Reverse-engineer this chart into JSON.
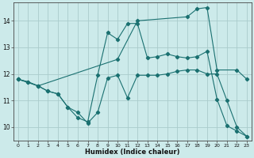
{
  "xlabel": "Humidex (Indice chaleur)",
  "bg_color": "#cceaea",
  "grid_color": "#aacccc",
  "line_color": "#1a7070",
  "xlim": [
    -0.5,
    23.5
  ],
  "ylim": [
    9.5,
    14.7
  ],
  "yticks": [
    10,
    11,
    12,
    13,
    14
  ],
  "xticks": [
    0,
    1,
    2,
    3,
    4,
    5,
    6,
    7,
    8,
    9,
    10,
    11,
    12,
    13,
    14,
    15,
    16,
    17,
    18,
    19,
    20,
    21,
    22,
    23
  ],
  "line1_x": [
    0,
    1,
    2,
    3,
    4,
    5,
    6,
    7,
    8,
    9,
    10,
    11,
    12,
    13,
    14,
    15,
    16,
    17,
    18,
    19,
    20,
    21,
    22,
    23
  ],
  "line1_y": [
    11.8,
    11.7,
    11.55,
    11.35,
    11.25,
    10.75,
    10.55,
    10.15,
    10.55,
    11.85,
    11.95,
    11.1,
    11.95,
    11.95,
    11.95,
    12.0,
    12.1,
    12.15,
    12.15,
    12.0,
    12.0,
    11.0,
    10.0,
    9.65
  ],
  "line2_x": [
    0,
    1,
    2,
    3,
    4,
    5,
    6,
    7,
    8,
    9,
    10,
    11,
    12,
    13,
    14,
    15,
    16,
    17,
    18,
    19,
    20,
    21,
    22,
    23
  ],
  "line2_y": [
    11.8,
    11.7,
    11.55,
    11.35,
    11.25,
    10.75,
    10.35,
    10.2,
    11.95,
    13.55,
    13.3,
    13.9,
    13.9,
    12.6,
    12.65,
    12.75,
    12.65,
    12.6,
    12.65,
    12.85,
    11.05,
    10.05,
    9.85,
    9.65
  ],
  "line3_x": [
    0,
    2,
    10,
    12,
    17,
    18,
    19,
    20,
    22,
    23
  ],
  "line3_y": [
    11.8,
    11.55,
    12.55,
    14.0,
    14.15,
    14.45,
    14.5,
    12.15,
    12.15,
    11.8
  ]
}
